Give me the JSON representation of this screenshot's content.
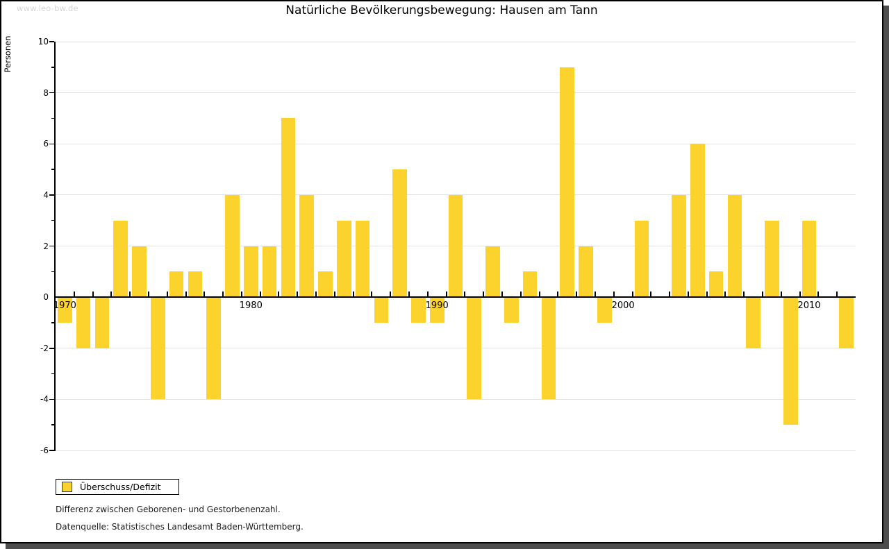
{
  "watermark": "www.leo-bw.de",
  "title": "Natürliche Bevölkerungsbewegung: Hausen am Tann",
  "legend": {
    "label": "Überschuss/Defizit"
  },
  "notes": [
    "Differenz zwischen Geborenen- und Gestorbenenzahl.",
    "Datenquelle: Statistisches Landesamt Baden-Württemberg."
  ],
  "chart_data": {
    "type": "bar",
    "title": "Natürliche Bevölkerungsbewegung: Hausen am Tann",
    "xlabel": "",
    "ylabel": "Personen",
    "ylim": [
      -6,
      10
    ],
    "ytick_step_labeled": 2,
    "grid": true,
    "legend_position": "bottom-left",
    "series_name": "Überschuss/Defizit",
    "bar_color": "#FCD32D",
    "xticks_labeled": [
      1970,
      1980,
      1990,
      2000,
      2010
    ],
    "x": [
      1970,
      1971,
      1972,
      1973,
      1974,
      1975,
      1976,
      1977,
      1978,
      1979,
      1980,
      1981,
      1982,
      1983,
      1984,
      1985,
      1986,
      1987,
      1988,
      1989,
      1990,
      1991,
      1992,
      1993,
      1994,
      1995,
      1996,
      1997,
      1998,
      1999,
      2000,
      2001,
      2002,
      2003,
      2004,
      2005,
      2006,
      2007,
      2008,
      2009,
      2010,
      2011,
      2012
    ],
    "values": [
      -1,
      -2,
      -2,
      3,
      2,
      -4,
      1,
      1,
      -4,
      4,
      2,
      2,
      7,
      4,
      1,
      3,
      3,
      -1,
      5,
      -1,
      -1,
      4,
      -4,
      2,
      -1,
      1,
      -4,
      9,
      2,
      -1,
      0,
      3,
      0,
      4,
      6,
      1,
      4,
      -2,
      3,
      -5,
      3,
      0,
      -2
    ]
  }
}
